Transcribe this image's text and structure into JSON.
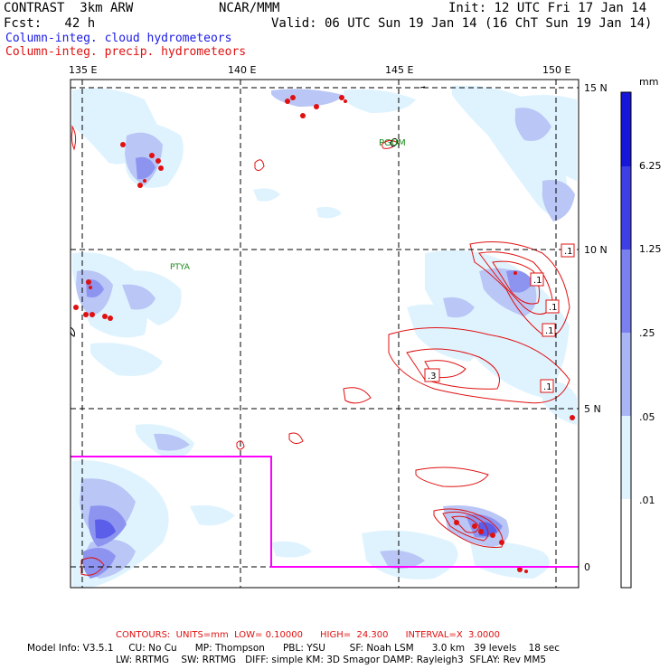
{
  "header": {
    "line1_left": "CONTRAST  3km ARW",
    "line1_center": "NCAR/MMM",
    "line1_right": "Init: 12 UTC Fri 17 Jan 14",
    "line2_left": "Fcst:   42 h",
    "line2_right": "Valid: 06 UTC Sun 19 Jan 14 (16 ChT Sun 19 Jan 14)",
    "field1": "Column-integ. cloud hydrometeors",
    "field2": "Column-integ. precip. hydrometeors"
  },
  "map": {
    "lon_labels": [
      "135 E",
      "140 E",
      "145 E",
      "150 E"
    ],
    "lat_labels": [
      "15 N",
      "10 N",
      "5 N",
      "0"
    ],
    "station_labels": {
      "guam": "PGUM",
      "palau": "PTYA"
    },
    "contour_labels": [
      ".1",
      ".1",
      ".1",
      ".1",
      ".3",
      ".1"
    ],
    "domain_box_color": "#ff00ff",
    "cloud_colors": [
      "#dff3ff",
      "#b9c6f6",
      "#8c94f0",
      "#5a5ee8",
      "#2020dd"
    ],
    "precip_color": "#e01010"
  },
  "legend": {
    "unit": "mm",
    "levels": [
      "6.25",
      "1.25",
      ".25",
      ".05",
      ".01"
    ],
    "colors": [
      "#1616d8",
      "#3f3fe6",
      "#7a80ef",
      "#a9b6f5",
      "#dff3ff",
      "#ffffff"
    ]
  },
  "footer": {
    "contours": "CONTOURS:  UNITS=mm  LOW= 0.10000      HIGH=  24.300      INTERVAL=X  3.0000",
    "model1": "Model Info: V3.5.1     CU: No Cu      MP: Thompson      PBL: YSU        SF: Noah LSM      3.0 km   39 levels    18 sec",
    "model2": "LW: RRTMG    SW: RRTMG   DIFF: simple KM: 3D Smagor DAMP: Rayleigh3  SFLAY: Rev MM5"
  }
}
